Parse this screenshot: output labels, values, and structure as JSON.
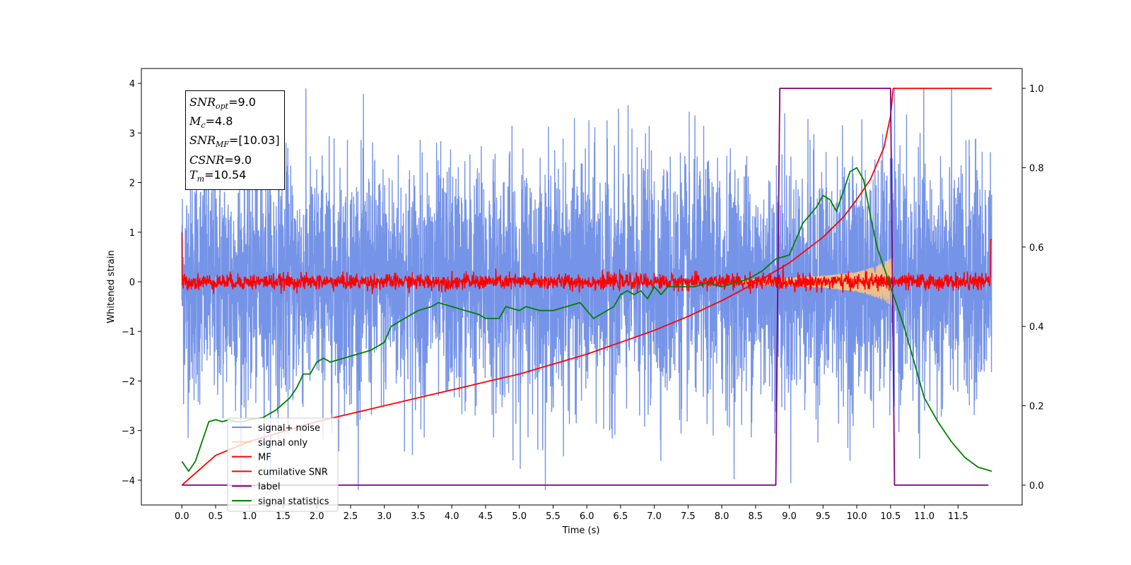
{
  "chart_data": {
    "type": "line",
    "xlabel": "Time (s)",
    "ylabel": "Whitened strain",
    "xlim": [
      -0.6,
      12.45
    ],
    "ylim": [
      -4.5,
      4.3
    ],
    "ylim_right": [
      -0.05,
      1.05
    ],
    "x_ticks": [
      "0.0",
      "0.5",
      "1.0",
      "1.5",
      "2.0",
      "2.5",
      "3.0",
      "3.5",
      "4.0",
      "4.5",
      "5.0",
      "5.5",
      "6.0",
      "6.5",
      "7.0",
      "7.5",
      "8.0",
      "8.5",
      "9.0",
      "9.5",
      "10.0",
      "10.5",
      "11.0",
      "11.5"
    ],
    "y_ticks_left": [
      "−4",
      "−3",
      "−2",
      "−1",
      "0",
      "1",
      "2",
      "3",
      "4"
    ],
    "y_ticks_right": [
      "0.0",
      "0.2",
      "0.4",
      "0.6",
      "0.8",
      "1.0"
    ],
    "legend_position": "lower-left",
    "annotation": {
      "snr_opt": "=9.0",
      "mc": "=4.8",
      "snr_mf": "=[10.03]",
      "csnr": "=9.0",
      "tm": "=10.54"
    },
    "series": [
      {
        "name": "signal+ noise",
        "color": "#6f8ee6",
        "axis": "left",
        "description_values": "whitened noise, approx. mean 0, std 1.2, range -4.2 to 3.9, x from 0.0 to 12.0"
      },
      {
        "name": "signal only",
        "color": "#ffc880",
        "axis": "left",
        "envelope_x": [
          8.5,
          9.0,
          9.5,
          10.0,
          10.3,
          10.54
        ],
        "envelope_amp": [
          0.05,
          0.08,
          0.12,
          0.2,
          0.32,
          0.5
        ]
      },
      {
        "name": "MF",
        "color": "#ff0000",
        "axis": "left",
        "description_values": "matched-filter output, mean 0, std approx. 0.08, x from 0.0 to 12.0, spike to 1.0 at 0.0 and 0.85 at 12.0"
      },
      {
        "name": "cumilative SNR",
        "color": "#ff0000",
        "axis": "right",
        "x": [
          0.0,
          0.5,
          1.0,
          1.5,
          2.0,
          2.5,
          3.0,
          3.5,
          4.0,
          4.5,
          5.0,
          5.5,
          6.0,
          6.5,
          7.0,
          7.5,
          8.0,
          8.5,
          9.0,
          9.5,
          9.8,
          10.0,
          10.2,
          10.4,
          10.5,
          10.54,
          12.0
        ],
        "values": [
          0.0,
          0.075,
          0.11,
          0.135,
          0.16,
          0.18,
          0.2,
          0.22,
          0.24,
          0.26,
          0.28,
          0.305,
          0.33,
          0.36,
          0.39,
          0.425,
          0.465,
          0.51,
          0.56,
          0.625,
          0.675,
          0.72,
          0.77,
          0.85,
          0.93,
          1.0,
          1.0
        ]
      },
      {
        "name": "label",
        "color": "#800080",
        "axis": "right",
        "x": [
          0.0,
          8.8,
          8.86,
          10.5,
          10.56,
          11.95
        ],
        "values": [
          0,
          0,
          1,
          1,
          0,
          0
        ]
      },
      {
        "name": "signal statistics",
        "color": "#008000",
        "axis": "right",
        "x": [
          0.0,
          0.1,
          0.2,
          0.3,
          0.4,
          0.5,
          0.6,
          0.7,
          0.8,
          0.9,
          1.0,
          1.2,
          1.4,
          1.6,
          1.7,
          1.8,
          1.9,
          2.0,
          2.1,
          2.2,
          2.4,
          2.6,
          2.8,
          3.0,
          3.1,
          3.3,
          3.4,
          3.5,
          3.7,
          3.8,
          4.0,
          4.2,
          4.4,
          4.5,
          4.7,
          4.8,
          5.0,
          5.1,
          5.3,
          5.5,
          5.7,
          5.9,
          6.0,
          6.1,
          6.2,
          6.4,
          6.5,
          6.6,
          6.7,
          6.8,
          6.9,
          7.0,
          7.1,
          7.2,
          7.4,
          7.6,
          7.8,
          8.0,
          8.2,
          8.4,
          8.6,
          8.8,
          9.0,
          9.1,
          9.2,
          9.3,
          9.4,
          9.5,
          9.6,
          9.7,
          9.8,
          9.9,
          10.0,
          10.1,
          10.2,
          10.3,
          10.4,
          10.5,
          10.6,
          10.7,
          10.8,
          10.9,
          11.0,
          11.2,
          11.4,
          11.6,
          11.8,
          12.0
        ],
        "values": [
          0.06,
          0.035,
          0.06,
          0.11,
          0.16,
          0.165,
          0.16,
          0.165,
          0.16,
          0.16,
          0.165,
          0.17,
          0.19,
          0.22,
          0.245,
          0.28,
          0.28,
          0.31,
          0.32,
          0.31,
          0.32,
          0.33,
          0.34,
          0.36,
          0.4,
          0.42,
          0.43,
          0.44,
          0.45,
          0.46,
          0.45,
          0.44,
          0.43,
          0.42,
          0.42,
          0.45,
          0.44,
          0.45,
          0.44,
          0.44,
          0.45,
          0.46,
          0.44,
          0.42,
          0.43,
          0.45,
          0.48,
          0.49,
          0.48,
          0.49,
          0.47,
          0.5,
          0.48,
          0.5,
          0.5,
          0.5,
          0.51,
          0.5,
          0.51,
          0.52,
          0.54,
          0.57,
          0.58,
          0.62,
          0.66,
          0.68,
          0.7,
          0.73,
          0.72,
          0.69,
          0.74,
          0.79,
          0.8,
          0.77,
          0.68,
          0.6,
          0.55,
          0.5,
          0.45,
          0.4,
          0.34,
          0.28,
          0.22,
          0.16,
          0.11,
          0.07,
          0.045,
          0.035
        ]
      }
    ]
  }
}
